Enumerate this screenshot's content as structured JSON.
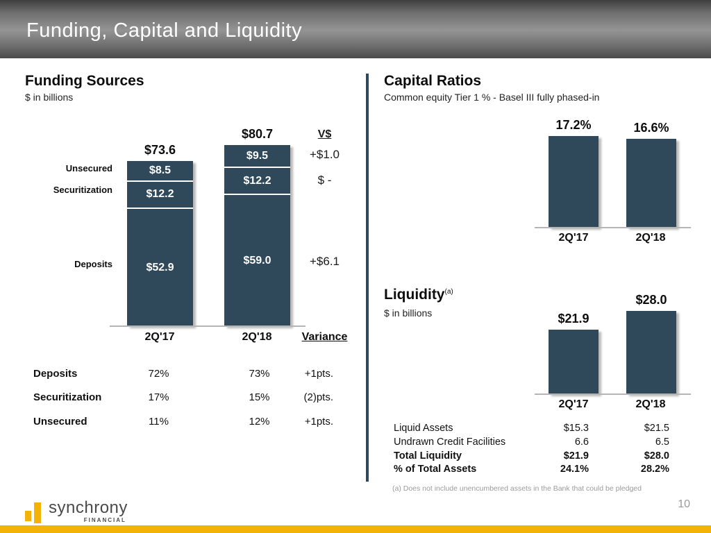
{
  "slide": {
    "title": "Funding, Capital and Liquidity",
    "page_number": "10",
    "footnote": "(a) Does not include unencumbered assets in the Bank that could be pledged"
  },
  "logo": {
    "word": "synchrony",
    "sub": "FINANCIAL"
  },
  "colors": {
    "bar_teal": "#2F495A",
    "brand_gold": "#F3B208",
    "header_gray": "#6f6f6f",
    "muted_text": "#9b9b9b"
  },
  "funding": {
    "heading": "Funding Sources",
    "subheading": "$ in billions",
    "v_header": "V$",
    "variance_header": "Variance",
    "categories": [
      "2Q'17",
      "2Q'18"
    ],
    "totals": {
      "q17": "$73.6",
      "q18": "$80.7"
    },
    "side_labels": [
      "Unsecured",
      "Securitization",
      "Deposits"
    ],
    "q17_segments": [
      "$8.5",
      "$12.2",
      "$52.9"
    ],
    "q18_segments": [
      "$9.5",
      "$12.2",
      "$59.0"
    ],
    "variances": [
      "+$1.0",
      "$ -",
      "+$6.1"
    ],
    "mix_table": [
      {
        "label": "Deposits",
        "q17": "72%",
        "q18": "73%",
        "v": "+1pts."
      },
      {
        "label": "Securitization",
        "q17": "17%",
        "q18": "15%",
        "v": "(2)pts."
      },
      {
        "label": "Unsecured",
        "q17": "11%",
        "q18": "12%",
        "v": "+1pts."
      }
    ]
  },
  "capital": {
    "heading": "Capital Ratios",
    "subheading": "Common equity Tier 1 % - Basel III fully phased-in",
    "categories": [
      "2Q'17",
      "2Q'18"
    ],
    "labels": [
      "17.2%",
      "16.6%"
    ]
  },
  "liquidity": {
    "heading": "Liquidity",
    "superscript": "(a)",
    "subheading": "$ in billions",
    "categories": [
      "2Q'17",
      "2Q'18"
    ],
    "labels": [
      "$21.9",
      "$28.0"
    ],
    "table": [
      {
        "label": "Liquid Assets",
        "q17": "$15.3",
        "q18": "$21.5",
        "bold": false
      },
      {
        "label": "Undrawn Credit Facilities",
        "q17": "6.6",
        "q18": "6.5",
        "bold": false
      },
      {
        "label": "Total Liquidity",
        "q17": "$21.9",
        "q18": "$28.0",
        "bold": true
      },
      {
        "label": "% of Total Assets",
        "q17": "24.1%",
        "q18": "28.2%",
        "bold": true
      }
    ]
  },
  "chart_data": [
    {
      "type": "bar",
      "subtype": "stacked",
      "title": "Funding Sources",
      "units": "$ in billions",
      "categories": [
        "2Q'17",
        "2Q'18"
      ],
      "series": [
        {
          "name": "Unsecured",
          "values": [
            8.5,
            9.5
          ],
          "variance": "+$1.0"
        },
        {
          "name": "Securitization",
          "values": [
            12.2,
            12.2
          ],
          "variance": "$ -"
        },
        {
          "name": "Deposits",
          "values": [
            52.9,
            59.0
          ],
          "variance": "+$6.1"
        }
      ],
      "totals": [
        73.6,
        80.7
      ],
      "mix_percent": {
        "Deposits": [
          72,
          73
        ],
        "Securitization": [
          17,
          15
        ],
        "Unsecured": [
          11,
          12
        ]
      },
      "legend_position": "left",
      "grid": false
    },
    {
      "type": "bar",
      "title": "Capital Ratios",
      "subtitle": "Common equity Tier 1 % - Basel III fully phased-in",
      "categories": [
        "2Q'17",
        "2Q'18"
      ],
      "values": [
        17.2,
        16.6
      ],
      "unit": "%",
      "grid": false
    },
    {
      "type": "bar",
      "title": "Liquidity",
      "subtitle": "$ in billions",
      "categories": [
        "2Q'17",
        "2Q'18"
      ],
      "values": [
        21.9,
        28.0
      ],
      "unit": "$B",
      "grid": false,
      "table": [
        [
          "Liquid Assets",
          15.3,
          21.5
        ],
        [
          "Undrawn Credit Facilities",
          6.6,
          6.5
        ],
        [
          "Total Liquidity",
          21.9,
          28.0
        ],
        [
          "% of Total Assets",
          "24.1%",
          "28.2%"
        ]
      ]
    }
  ]
}
